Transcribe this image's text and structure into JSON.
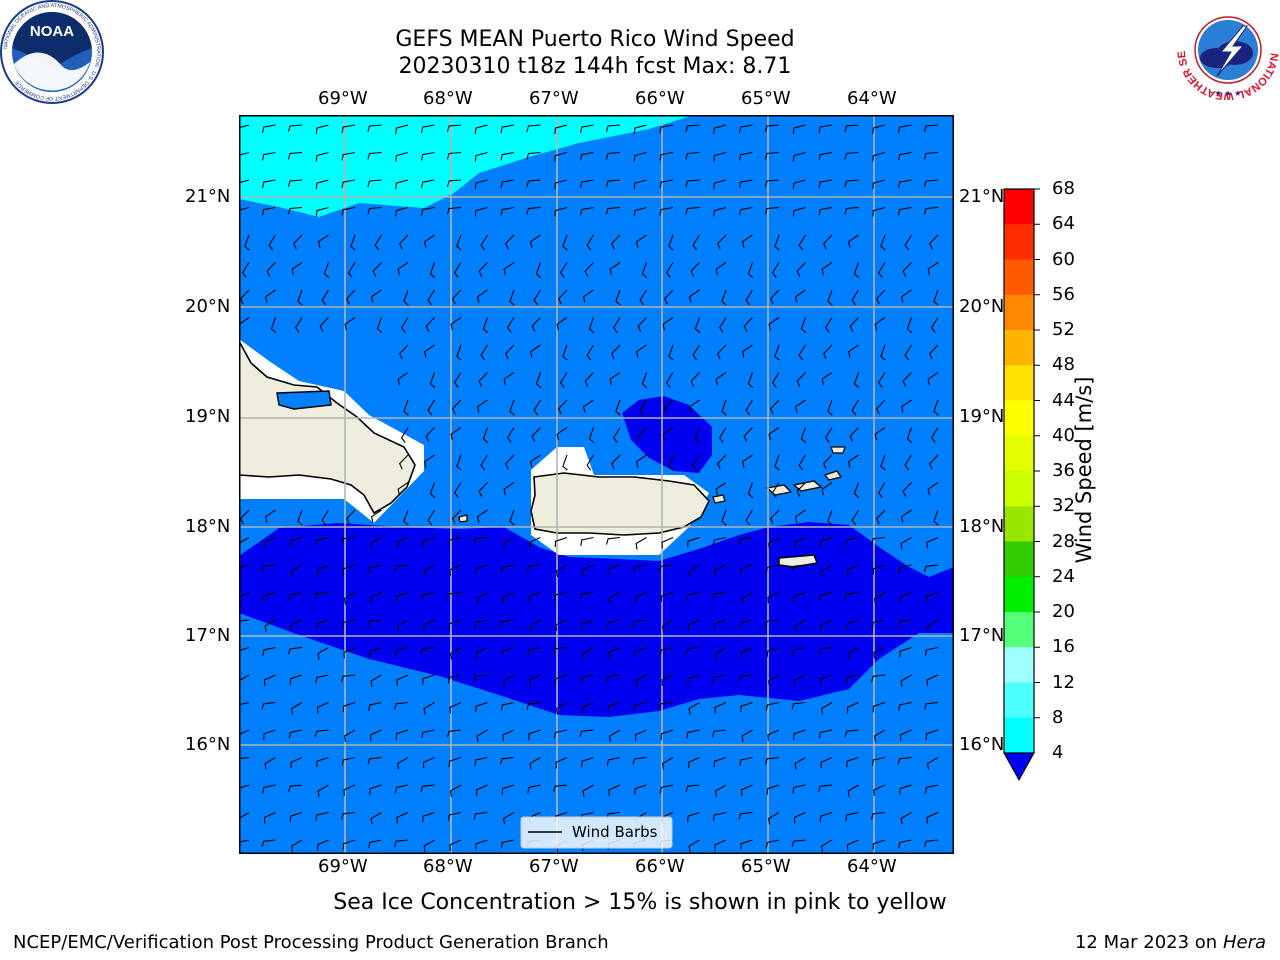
{
  "header": {
    "title_line1": "GEFS MEAN Puerto Rico Wind Speed",
    "title_line2": "20230310 t18z 144h fcst   Max: 8.71"
  },
  "logos": {
    "noaa": {
      "center_text": "NOAA",
      "ring_text": "NATIONAL OCEANIC AND ATMOSPHERIC ADMINISTRATION · U.S. DEPARTMENT OF COMMERCE"
    },
    "nws": {
      "ring_text": "NATIONAL WEATHER SERVICE"
    }
  },
  "map": {
    "lon_labels": [
      "69°W",
      "68°W",
      "67°W",
      "66°W",
      "65°W",
      "64°W"
    ],
    "lat_labels": [
      "21°N",
      "20°N",
      "19°N",
      "18°N",
      "17°N",
      "16°N"
    ],
    "extent": {
      "lon_min": -70.0,
      "lon_max": -63.25,
      "lat_min": 15.0,
      "lat_max": 21.75
    },
    "legend_label": "Wind Barbs",
    "fill_colors": {
      "band_4_8": "#0080ff",
      "band_8_12": "#00ffff",
      "below_4": "#0000f0",
      "land": "#efedde"
    }
  },
  "colorbar": {
    "label": "Wind Speed [m/s]",
    "ticks": [
      "68",
      "64",
      "60",
      "56",
      "52",
      "48",
      "44",
      "40",
      "36",
      "32",
      "28",
      "24",
      "20",
      "16",
      "12",
      "8",
      "4"
    ],
    "colors": [
      "#ff0000",
      "#ff2d00",
      "#ff5a00",
      "#ff8700",
      "#ffb400",
      "#ffe100",
      "#ffff00",
      "#e6ff00",
      "#ccff00",
      "#99e600",
      "#33cc00",
      "#00ee00",
      "#55ff77",
      "#a0ffff",
      "#4dffff",
      "#00ffff",
      "#0080ff"
    ],
    "extend_color": "#0000f0"
  },
  "note": "Sea Ice Concentration > 15% is shown in pink to yellow",
  "footer": {
    "left": "NCEP/EMC/Verification Post Processing Product Generation Branch",
    "date": "12 Mar 2023 on",
    "machine": "Hera"
  }
}
